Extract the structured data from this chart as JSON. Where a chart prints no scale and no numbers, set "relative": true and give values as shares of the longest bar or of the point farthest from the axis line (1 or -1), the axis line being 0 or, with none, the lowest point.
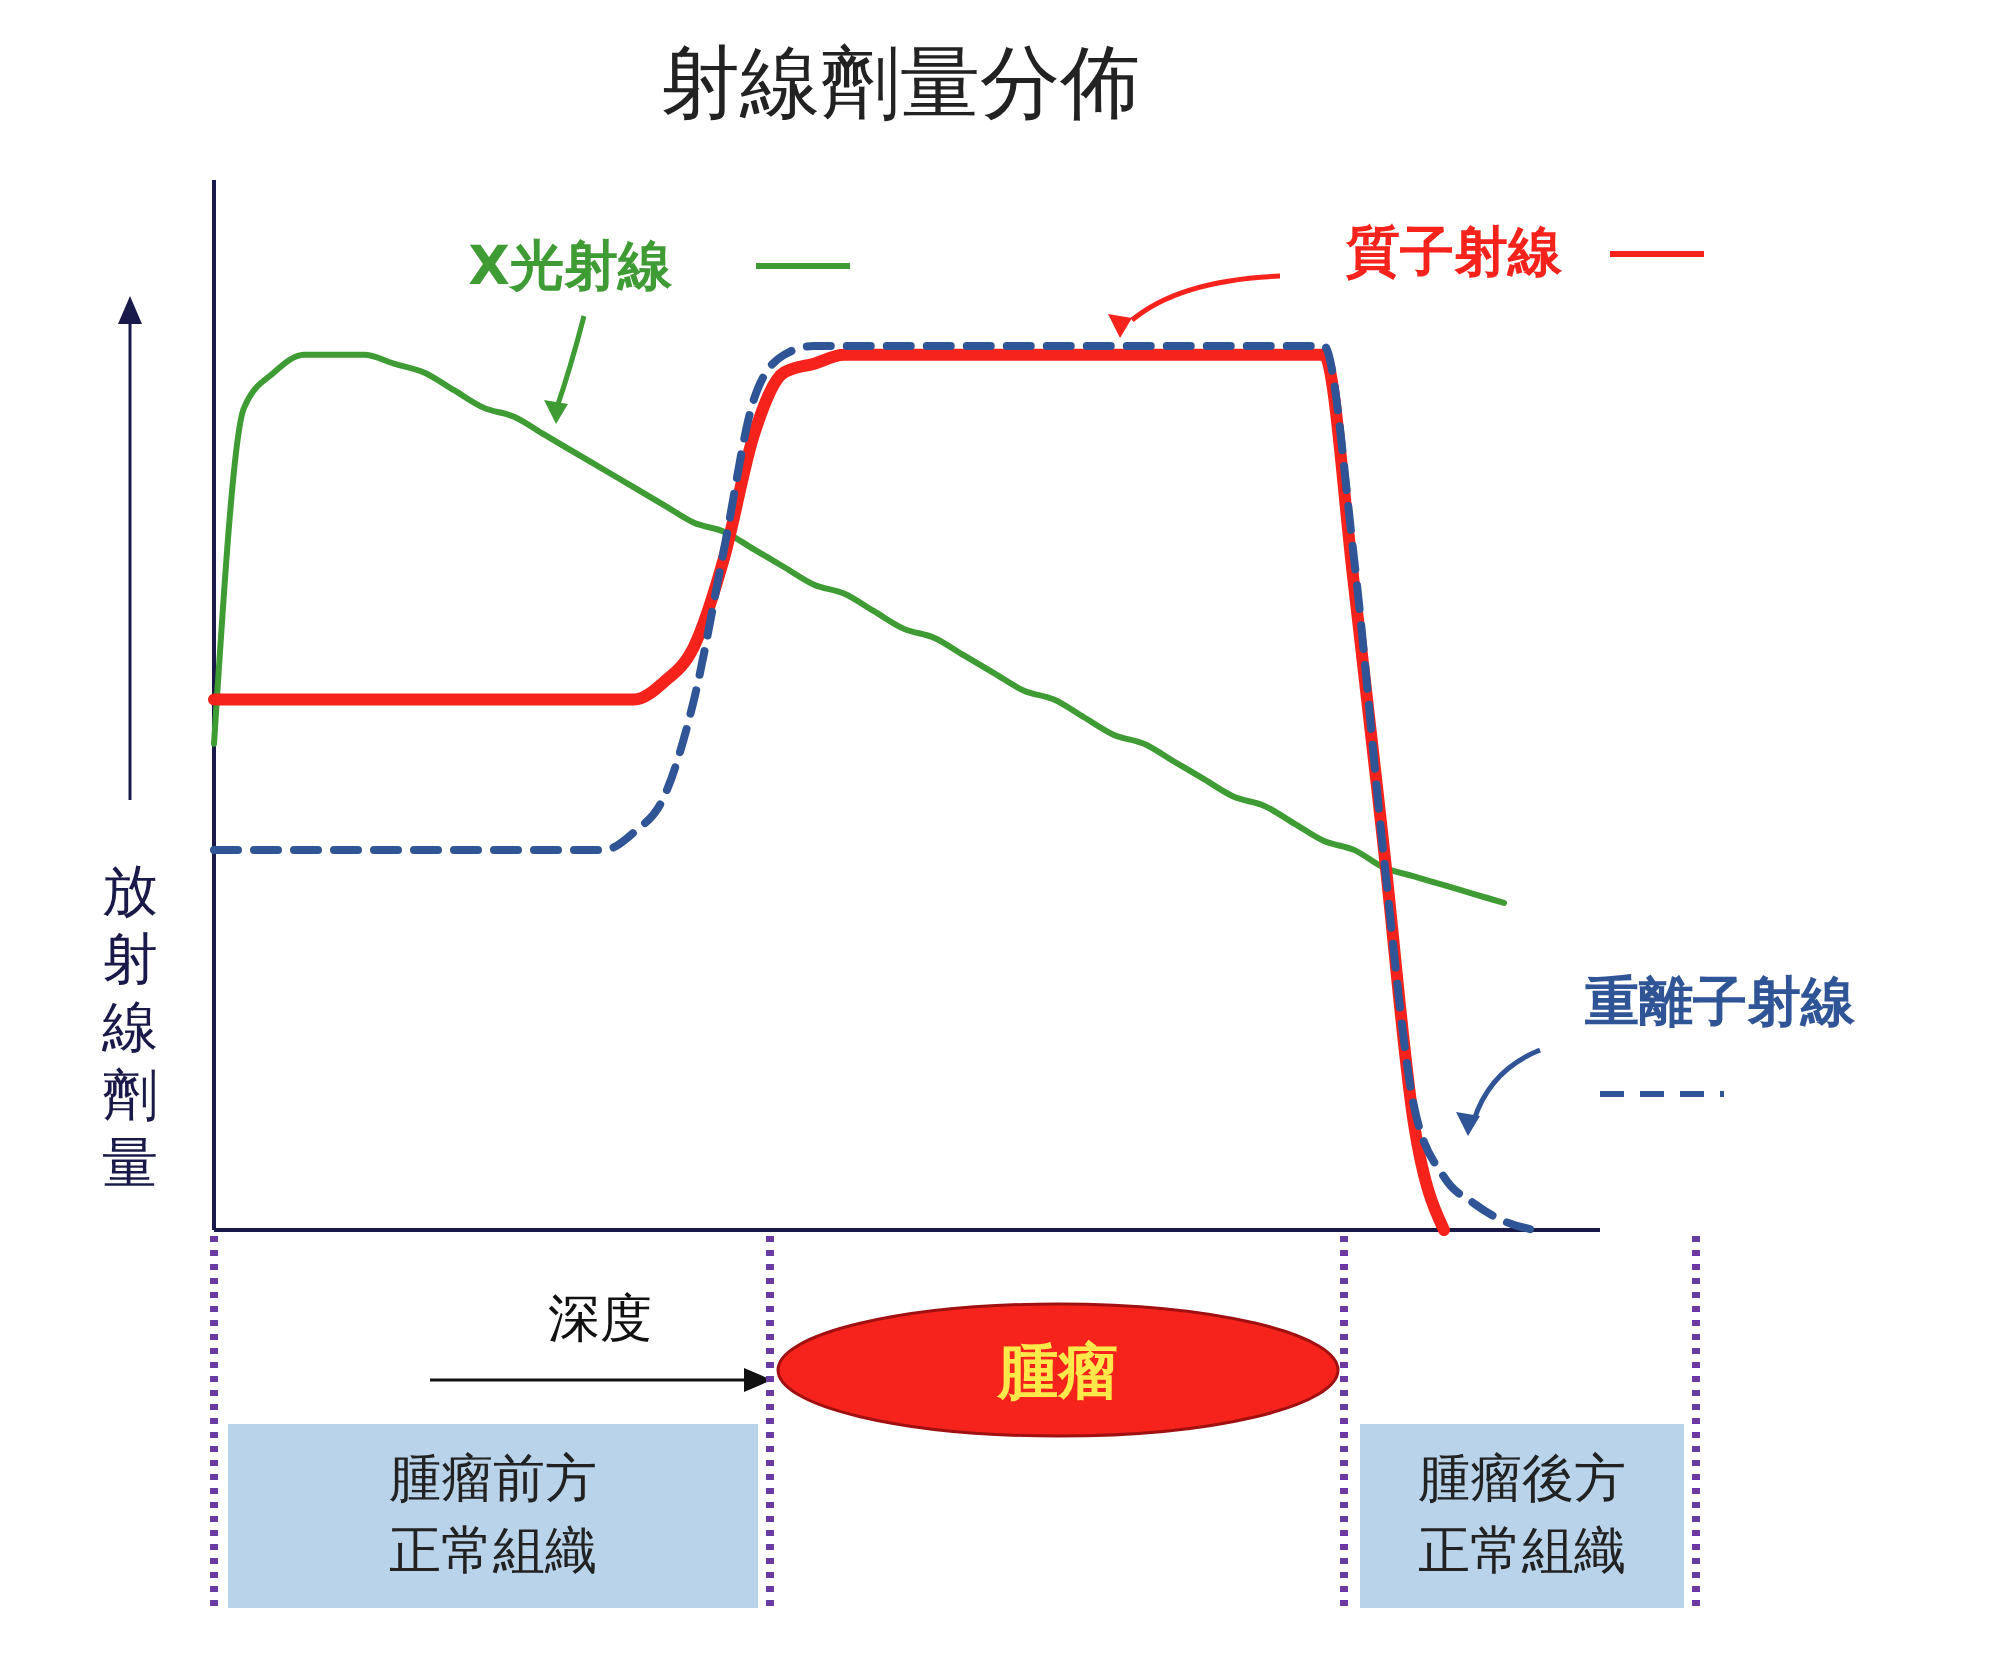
{
  "chart_data": {
    "type": "line",
    "title": "射線劑量分佈",
    "xlabel": "深度",
    "ylabel": "放射線劑量",
    "relative": true,
    "legend": "top right",
    "categories": [
      null,
      null,
      null,
      null,
      null,
      null,
      null,
      null,
      null,
      null,
      null,
      null,
      null,
      null,
      null,
      null,
      null,
      null,
      null,
      null,
      null,
      null,
      null,
      null,
      null,
      null,
      null,
      null,
      null,
      null,
      null,
      null,
      null,
      null,
      null,
      null,
      null,
      null,
      null,
      null,
      null,
      null,
      null,
      null,
      null,
      null,
      null
    ],
    "series": [
      {
        "name": "X光射線",
        "color": "#3f9c35",
        "line_style": "solid",
        "values": [
          0.55,
          0.93,
          0.97,
          0.99,
          0.99,
          0.99,
          0.98,
          0.97,
          0.95,
          0.93,
          0.92,
          0.9,
          0.88,
          0.86,
          0.84,
          0.82,
          0.8,
          0.79,
          0.77,
          0.75,
          0.73,
          0.72,
          0.7,
          0.68,
          0.67,
          0.65,
          0.63,
          0.61,
          0.6,
          0.58,
          0.56,
          0.55,
          0.53,
          0.51,
          0.49,
          0.48,
          0.46,
          0.44,
          0.43,
          0.41,
          0.4,
          0.39,
          0.38,
          0.37,
          null,
          null,
          null
        ]
      },
      {
        "name": "質子射線",
        "color": "#f5231c",
        "line_style": "solid",
        "values": [
          0.6,
          0.6,
          0.6,
          0.6,
          0.6,
          0.6,
          0.6,
          0.6,
          0.6,
          0.6,
          0.6,
          0.6,
          0.6,
          0.6,
          0.6,
          0.62,
          0.66,
          0.76,
          0.9,
          0.97,
          0.98,
          0.99,
          0.99,
          0.99,
          0.99,
          0.99,
          0.99,
          0.99,
          0.99,
          0.99,
          0.99,
          0.99,
          0.99,
          0.99,
          0.99,
          0.99,
          0.99,
          0.99,
          0.73,
          0.43,
          0.12,
          0,
          null,
          null,
          null,
          null,
          null
        ]
      },
      {
        "name": "重離子射線",
        "color": "#2f5597",
        "line_style": "dashed",
        "values": [
          0.43,
          0.43,
          0.43,
          0.43,
          0.43,
          0.43,
          0.43,
          0.43,
          0.43,
          0.43,
          0.43,
          0.43,
          0.43,
          0.43,
          0.45,
          0.49,
          0.6,
          0.77,
          0.94,
          0.99,
          1,
          1,
          1,
          1,
          1,
          1,
          1,
          1,
          1,
          1,
          1,
          1,
          1,
          1,
          1,
          1,
          1,
          1,
          0.76,
          0.42,
          0.14,
          0.06,
          0.03,
          0.01,
          0,
          null,
          null
        ]
      }
    ],
    "annotations": [
      "腫瘤",
      "腫瘤前方正常組織",
      "腫瘤後方正常組織"
    ]
  }
}
